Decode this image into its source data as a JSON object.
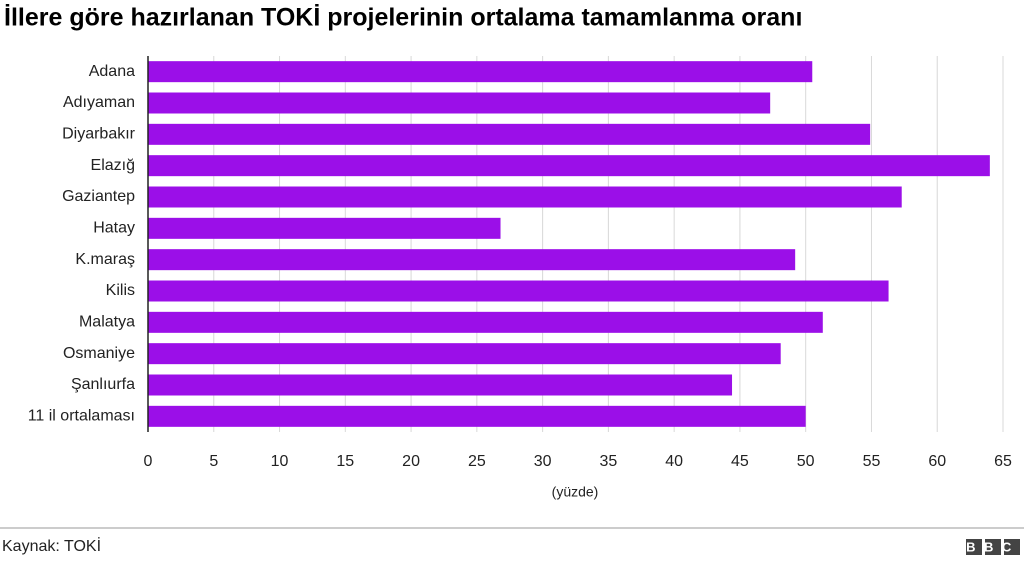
{
  "chart_data": {
    "type": "barh",
    "title": "İllere göre hazırlanan TOKİ projelerinin ortalama tamamlanma oranı",
    "categories": [
      "Adana",
      "Adıyaman",
      "Diyarbakır",
      "Elazığ",
      "Gaziantep",
      "Hatay",
      "K.maraş",
      "Kilis",
      "Malatya",
      "Osmaniye",
      "Şanlıurfa",
      "11 il ortalaması"
    ],
    "values": [
      50.5,
      47.3,
      54.9,
      64.0,
      57.3,
      26.8,
      49.2,
      56.3,
      51.3,
      48.1,
      44.4,
      50.0
    ],
    "color": "#9b0fe8",
    "xlim": [
      0,
      65
    ],
    "xticks": [
      0,
      5,
      10,
      15,
      20,
      25,
      30,
      35,
      40,
      45,
      50,
      55,
      60,
      65
    ],
    "grid": true,
    "x_label": "(yüzde)",
    "source": "Kaynak: TOKİ",
    "logo": "BBC"
  }
}
